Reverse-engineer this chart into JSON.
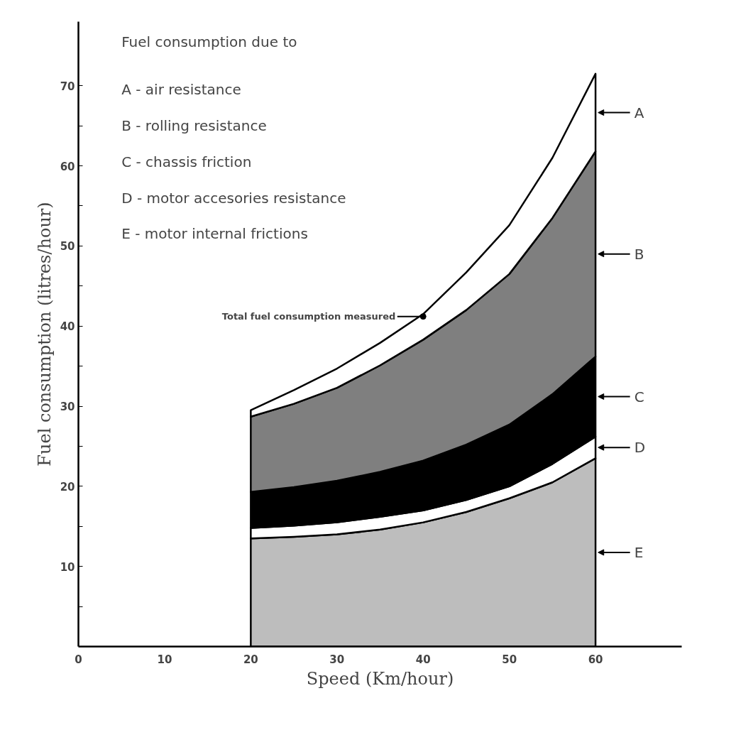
{
  "chart_data": {
    "type": "area",
    "stacked": true,
    "xlabel": "Speed (Km/hour)",
    "ylabel": "Fuel consumption (litres/hour)",
    "x": [
      20,
      25,
      30,
      35,
      40,
      45,
      50,
      55,
      60
    ],
    "series": [
      {
        "name": "E",
        "color": "#bdbdbd",
        "values": [
          13.5,
          13.7,
          14,
          14.6,
          15.5,
          16.8,
          18.5,
          20.5,
          23.5
        ]
      },
      {
        "name": "D",
        "color": "#ffffff",
        "values": [
          1.3,
          1.4,
          1.5,
          1.6,
          1.5,
          1.5,
          1.5,
          2.3,
          2.7
        ]
      },
      {
        "name": "C",
        "color": "#000000",
        "values": [
          4.5,
          4.8,
          5.2,
          5.6,
          6.2,
          6.9,
          7.7,
          8.7,
          10
        ]
      },
      {
        "name": "B",
        "color": "#7f7f7f",
        "values": [
          9.4,
          10.4,
          11.6,
          13.3,
          15.1,
          16.8,
          18.8,
          22,
          25.6
        ]
      },
      {
        "name": "A",
        "color": "#ffffff",
        "values": [
          0.8,
          1.7,
          2.4,
          2.8,
          3.2,
          4.7,
          6.1,
          7.5,
          9.7
        ]
      },
      {
        "type": "scatter",
        "color": "#000000",
        "marker": "circle",
        "x": [
          40
        ],
        "values": [
          41.2
        ]
      }
    ],
    "xlim": [
      0,
      70
    ],
    "ylim": [
      0,
      78
    ],
    "xticks": [
      0,
      10,
      20,
      30,
      40,
      50,
      60
    ],
    "yticks": [
      {
        "value": 5,
        "label": null
      },
      10,
      {
        "value": 15,
        "label": null
      },
      20,
      {
        "value": 25,
        "label": null
      },
      30,
      {
        "value": 35,
        "label": null
      },
      40,
      {
        "value": 45,
        "label": null
      },
      50,
      {
        "value": 55,
        "label": null
      },
      60,
      {
        "value": 65,
        "label": null
      },
      70
    ],
    "annotations": [
      "Fuel consumption due to",
      "A - air resistance",
      "B - rolling resistance",
      "C - chassis friction",
      "D - motor accesories resistance",
      "E - motor internal frictions",
      {
        "text": "Total fuel consumption measured",
        "x": 40,
        "y": 41.2
      }
    ],
    "grid": false,
    "legend": "right"
  }
}
